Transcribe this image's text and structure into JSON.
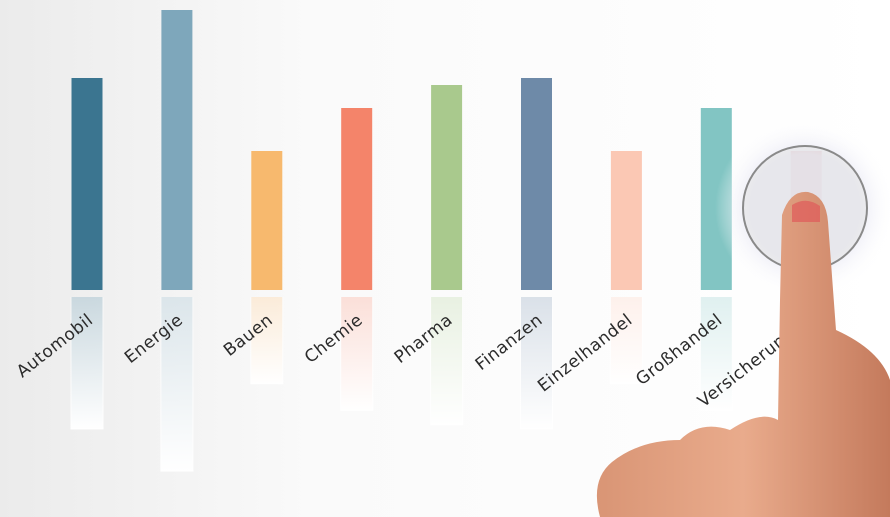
{
  "chart_data": {
    "type": "bar",
    "categories": [
      "Automobil",
      "Energie",
      "Bauen",
      "Chemie",
      "Pharma",
      "Finanzen",
      "Einzelhandel",
      "Großhandel",
      "Versicherungen"
    ],
    "values": [
      212,
      280,
      139,
      182,
      205,
      212,
      139,
      182,
      139
    ],
    "colors": [
      "#3b7590",
      "#7ea7bb",
      "#f7b96e",
      "#f4846a",
      "#a9c98d",
      "#6e8aa8",
      "#fbc8b4",
      "#82c5c3",
      "#d8707e"
    ]
  }
}
